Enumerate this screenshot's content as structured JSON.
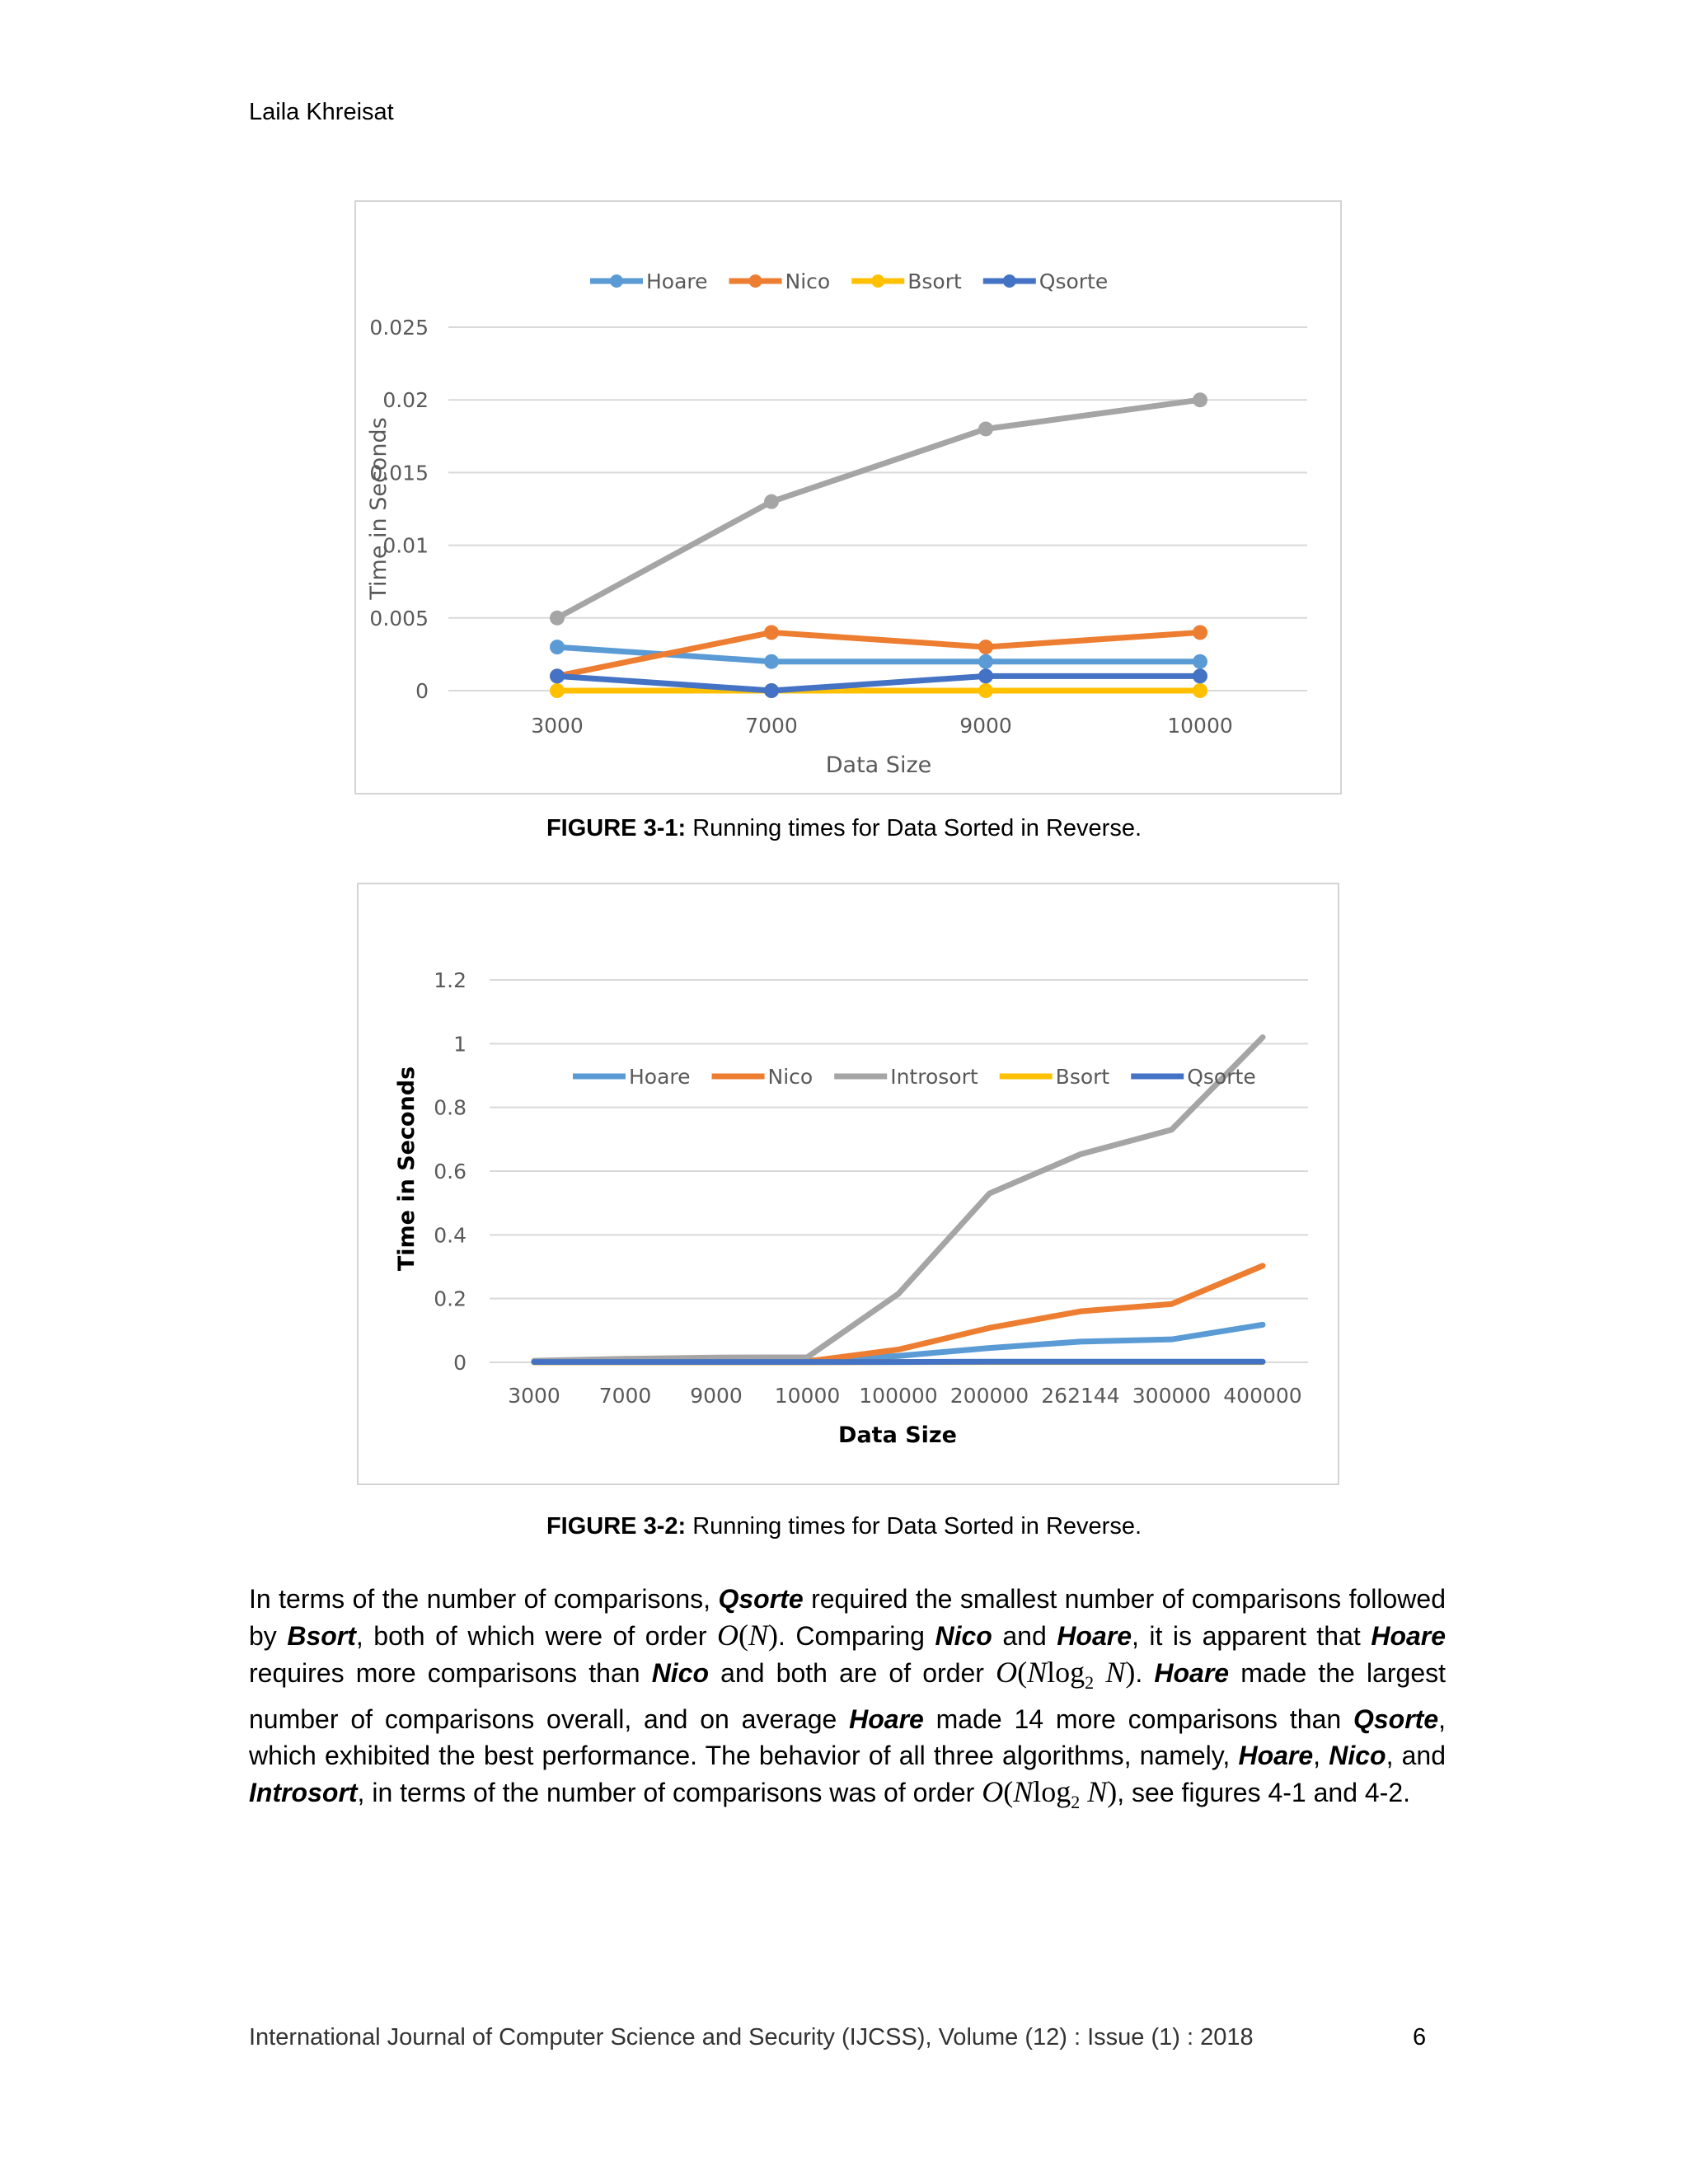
{
  "header": {
    "author": "Laila Khreisat"
  },
  "chart_data": [
    {
      "type": "line",
      "title": "",
      "xlabel": "Data Size",
      "ylabel": "Time in Seconds",
      "categories": [
        "3000",
        "7000",
        "9000",
        "10000"
      ],
      "ylim": [
        0,
        0.025
      ],
      "yticks": [
        "0",
        "0.005",
        "0.01",
        "0.015",
        "0.02",
        "0.025"
      ],
      "grid": true,
      "legend_position": "top",
      "markers": true,
      "series": [
        {
          "name": "Hoare",
          "color": "#5b9bd5",
          "values": [
            0.003,
            0.002,
            0.002,
            0.002
          ]
        },
        {
          "name": "Nico",
          "color": "#ed7d31",
          "values": [
            0.001,
            0.004,
            0.003,
            0.004
          ]
        },
        {
          "name": "",
          "color": "#a5a5a5",
          "values": [
            0.005,
            0.013,
            0.018,
            0.02
          ]
        },
        {
          "name": "Bsort",
          "color": "#ffc000",
          "values": [
            0,
            0,
            0,
            0
          ]
        },
        {
          "name": "Qsorte",
          "color": "#4472c4",
          "values": [
            0.001,
            0,
            0.001,
            0.001
          ]
        }
      ]
    },
    {
      "type": "line",
      "title": "",
      "xlabel": "Data Size",
      "ylabel": "Time in Seconds",
      "categories": [
        "3000",
        "7000",
        "9000",
        "10000",
        "100000",
        "200000",
        "262144",
        "300000",
        "400000"
      ],
      "ylim": [
        0,
        1.2
      ],
      "yticks": [
        "0",
        "0.2",
        "0.4",
        "0.6",
        "0.8",
        "1",
        "1.2"
      ],
      "grid": true,
      "legend_position": "top",
      "markers": false,
      "series": [
        {
          "name": "Hoare",
          "color": "#5b9bd5",
          "values": [
            0.003,
            0.004,
            0.005,
            0.005,
            0.02,
            0.045,
            0.065,
            0.072,
            0.118
          ]
        },
        {
          "name": "Nico",
          "color": "#ed7d31",
          "values": [
            0.002,
            0.003,
            0.003,
            0.003,
            0.04,
            0.108,
            0.16,
            0.183,
            0.303
          ]
        },
        {
          "name": "Introsort",
          "color": "#a5a5a5",
          "values": [
            0.005,
            0.011,
            0.015,
            0.016,
            0.215,
            0.53,
            0.653,
            0.73,
            1.02
          ]
        },
        {
          "name": "Bsort",
          "color": "#ffc000",
          "values": [
            0,
            0,
            0,
            0,
            0.001,
            0.001,
            0.001,
            0.001,
            0.001
          ]
        },
        {
          "name": "Qsorte",
          "color": "#4472c4",
          "values": [
            0.001,
            0.001,
            0.001,
            0.001,
            0.001,
            0.002,
            0.002,
            0.002,
            0.002
          ]
        }
      ]
    }
  ],
  "captions": {
    "fig1_label": "FIGURE 3-1:",
    "fig1_text": " Running times for Data Sorted in Reverse.",
    "fig2_label": "FIGURE 3-2:",
    "fig2_text": " Running times for Data Sorted in Reverse."
  },
  "body": {
    "t1": "In terms of the number of comparisons, ",
    "b_qsorte1": "Qsorte",
    "t2": " required the smallest number of comparisons followed by ",
    "b_bsort": "Bsort",
    "t3": ", both of which were of order ",
    "t4": ". Comparing ",
    "b_nico1": "Nico",
    "t5": " and ",
    "b_hoare1": "Hoare",
    "t6": ", it is apparent that ",
    "b_hoare2": "Hoare",
    "t7": " requires more comparisons than ",
    "b_nico2": "Nico",
    "t8": " and both are of order ",
    "t9": ".  ",
    "b_hoare3": "Hoare",
    "t10": " made the largest number of comparisons overall, and on average ",
    "b_hoare4": "Hoare",
    "t11": " made 14 more comparisons than ",
    "b_qsorte2": "Qsorte",
    "t12": ", which exhibited the best performance. The behavior of all three algorithms, namely, ",
    "b_hoare5": "Hoare",
    "t13": ", ",
    "b_nico3": "Nico",
    "t14": ", and ",
    "b_introsort": "Introsort",
    "t15": ", in terms of the number of comparisons was of order ",
    "t16": ", see figures 4-1 and 4-2.",
    "math_on_o": "O",
    "math_on_n": "N",
    "math_nlog_o": "O",
    "math_nlog_n1": "N",
    "math_nlog_log": "log",
    "math_nlog_sub": "2",
    "math_nlog_n2": "N"
  },
  "footer": {
    "journal": "International Journal of Computer Science and Security (IJCSS), Volume (12) : Issue (1) : 2018",
    "page": "6"
  }
}
